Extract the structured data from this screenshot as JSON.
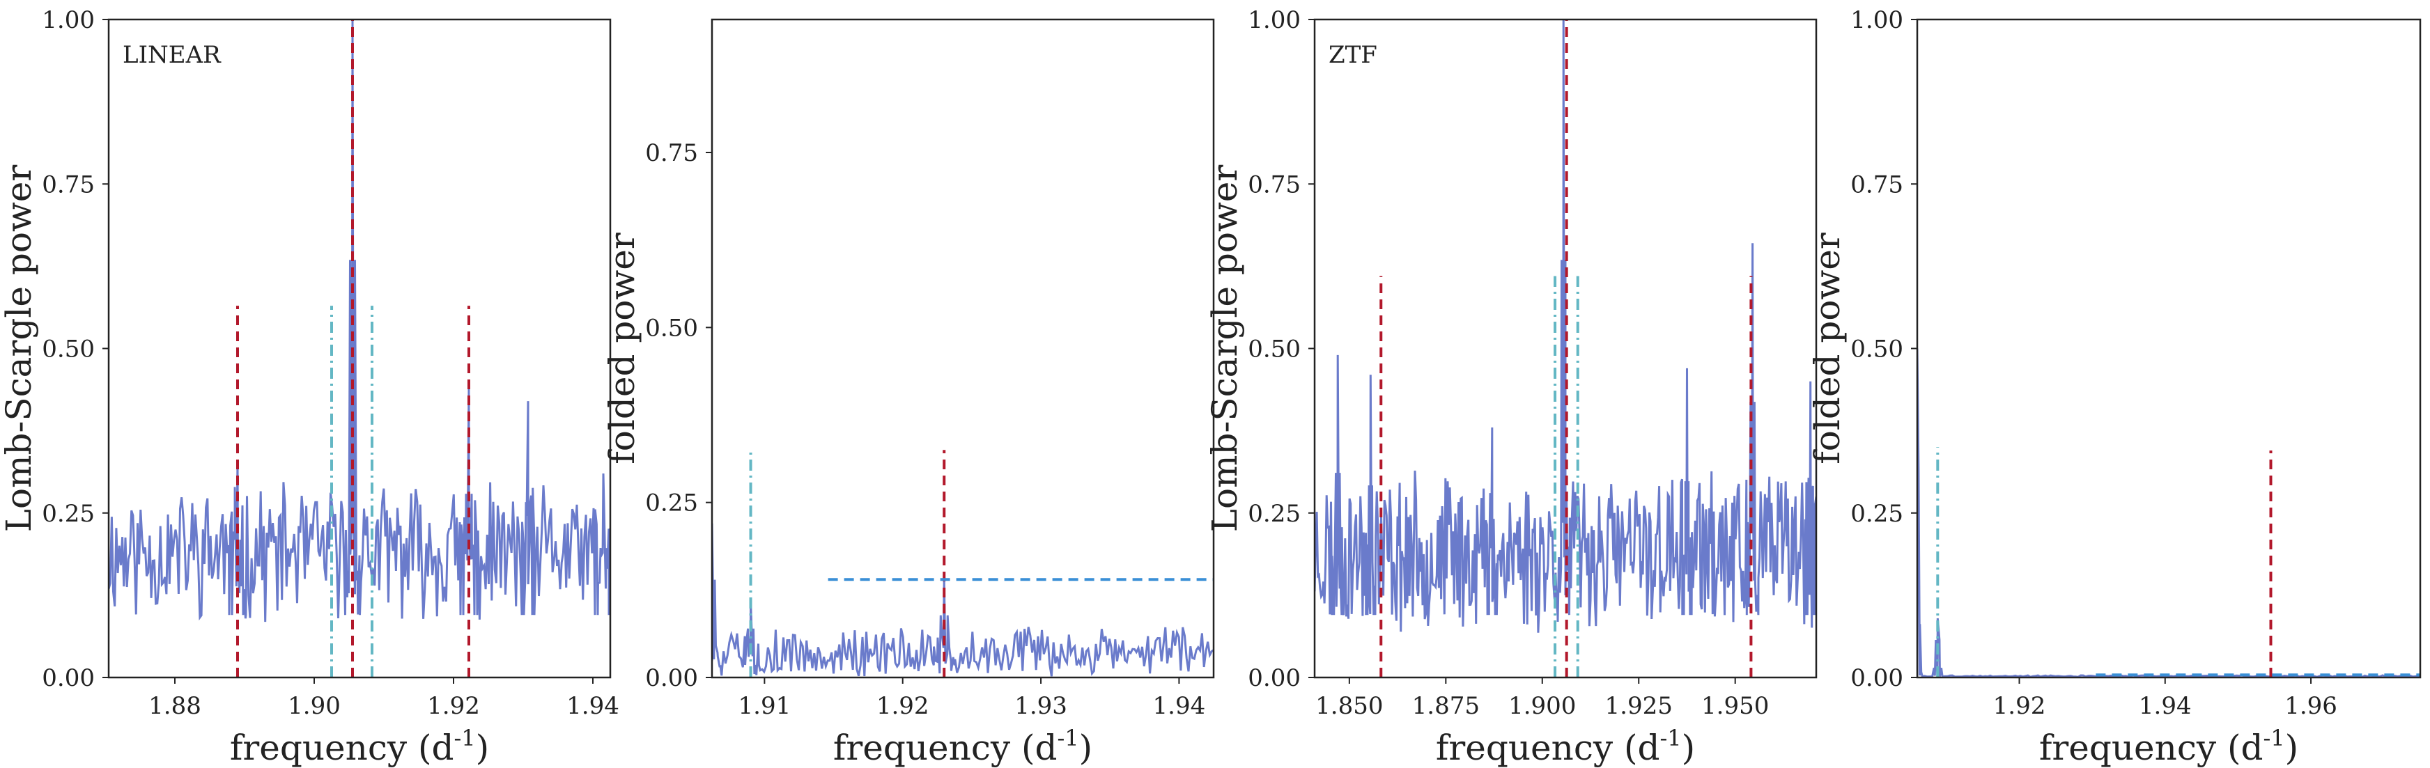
{
  "chart_data": [
    {
      "type": "line",
      "panel": "linear-periodogram",
      "annotation": "LINEAR",
      "xlabel": "frequency (d",
      "xlabel_sup": "-1",
      "xlabel_end": ")",
      "ylabel": "Lomb-Scargle power",
      "xlim": [
        1.8705,
        1.9425
      ],
      "ylim": [
        0,
        1
      ],
      "xticks": [
        1.88,
        1.9,
        1.92,
        1.94
      ],
      "xtick_labels": [
        "1.88",
        "1.90",
        "1.92",
        "1.94"
      ],
      "yticks": [
        0,
        0.25,
        0.5,
        0.75,
        1.0
      ],
      "ytick_labels": [
        "0.00",
        "0.25",
        "0.50",
        "0.75",
        "1.00"
      ],
      "noise": {
        "base": 0.19,
        "amp": 0.085,
        "n": 330,
        "seed": 11
      },
      "peaks": [
        {
          "x": 1.9055,
          "y": 1.0,
          "w": 0.00035
        },
        {
          "x": 1.9222,
          "y": 0.44,
          "w": 0.0004
        },
        {
          "x": 1.889,
          "y": 0.33,
          "w": 0.0004
        },
        {
          "x": 1.9307,
          "y": 0.42,
          "w": 0.0003
        },
        {
          "x": 1.9415,
          "y": 0.31,
          "w": 0.0004
        }
      ],
      "vlines": [
        {
          "x": 1.889,
          "y1": 0.0,
          "y2": 0.565,
          "style": "red-dashed"
        },
        {
          "x": 1.9055,
          "y1": 0.0,
          "y2": 1.0,
          "style": "red-dashed"
        },
        {
          "x": 1.9222,
          "y1": 0.0,
          "y2": 0.565,
          "style": "red-dashed"
        },
        {
          "x": 1.9025,
          "y1": 0.0,
          "y2": 0.565,
          "style": "cyan-dashdot"
        },
        {
          "x": 1.9083,
          "y1": 0.0,
          "y2": 0.565,
          "style": "cyan-dashdot"
        }
      ],
      "hlines": []
    },
    {
      "type": "line",
      "panel": "linear-folded",
      "annotation": "",
      "xlabel": "frequency (d",
      "xlabel_sup": "-1",
      "xlabel_end": ")",
      "ylabel": "folded power",
      "xlim": [
        1.9062,
        1.9425
      ],
      "ylim": [
        0,
        0.94
      ],
      "xticks": [
        1.91,
        1.92,
        1.93,
        1.94
      ],
      "xtick_labels": [
        "1.91",
        "1.92",
        "1.93",
        "1.94"
      ],
      "yticks": [
        0,
        0.25,
        0.5,
        0.75
      ],
      "ytick_labels": [
        "0.00",
        "0.25",
        "0.50",
        "0.75"
      ],
      "noise": {
        "base": 0.035,
        "amp": 0.03,
        "n": 260,
        "seed": 5
      },
      "peaks": [
        {
          "x": 1.9062,
          "y": 0.22,
          "w": 0.0002
        },
        {
          "x": 1.909,
          "y": 0.11,
          "w": 0.0002
        },
        {
          "x": 1.923,
          "y": 0.14,
          "w": 0.00025
        }
      ],
      "vlines": [
        {
          "x": 1.909,
          "y1": 0.0,
          "y2": 0.325,
          "style": "cyan-dashdot"
        },
        {
          "x": 1.923,
          "y1": 0.0,
          "y2": 0.325,
          "style": "red-dashed"
        }
      ],
      "hlines": [
        {
          "y": 0.14,
          "x1": 1.9146,
          "x2": 1.9425,
          "style": "blue-dashed"
        }
      ]
    },
    {
      "type": "line",
      "panel": "ztf-periodogram",
      "annotation": "ZTF",
      "xlabel": "frequency (d",
      "xlabel_sup": "-1",
      "xlabel_end": ")",
      "ylabel": "Lomb-Scargle power",
      "xlim": [
        1.841,
        1.971
      ],
      "ylim": [
        0,
        1
      ],
      "xticks": [
        1.85,
        1.875,
        1.9,
        1.925,
        1.95
      ],
      "xtick_labels": [
        "1.850",
        "1.875",
        "1.900",
        "1.925",
        "1.950"
      ],
      "yticks": [
        0,
        0.25,
        0.5,
        0.75,
        1.0
      ],
      "ytick_labels": [
        "0.00",
        "0.25",
        "0.50",
        "0.75",
        "1.00"
      ],
      "noise": {
        "base": 0.19,
        "amp": 0.1,
        "n": 460,
        "seed": 23
      },
      "peaks": [
        {
          "x": 1.9055,
          "y": 1.0,
          "w": 0.0005
        },
        {
          "x": 1.9545,
          "y": 0.66,
          "w": 0.0005
        },
        {
          "x": 1.847,
          "y": 0.49,
          "w": 0.0005
        },
        {
          "x": 1.8555,
          "y": 0.46,
          "w": 0.0004
        },
        {
          "x": 1.9375,
          "y": 0.47,
          "w": 0.0004
        },
        {
          "x": 1.9695,
          "y": 0.45,
          "w": 0.0004
        },
        {
          "x": 1.887,
          "y": 0.38,
          "w": 0.0004
        }
      ],
      "vlines": [
        {
          "x": 1.8582,
          "y1": 0.0,
          "y2": 0.61,
          "style": "red-dashed"
        },
        {
          "x": 1.9063,
          "y1": 0.0,
          "y2": 1.0,
          "style": "red-dashed"
        },
        {
          "x": 1.9541,
          "y1": 0.0,
          "y2": 0.61,
          "style": "red-dashed"
        },
        {
          "x": 1.9033,
          "y1": 0.0,
          "y2": 0.61,
          "style": "cyan-dashdot"
        },
        {
          "x": 1.9092,
          "y1": 0.0,
          "y2": 0.61,
          "style": "cyan-dashdot"
        }
      ],
      "hlines": []
    },
    {
      "type": "line",
      "panel": "ztf-folded",
      "annotation": "",
      "xlabel": "frequency (d",
      "xlabel_sup": "-1",
      "xlabel_end": ")",
      "ylabel": "folded power",
      "xlim": [
        1.906,
        1.975
      ],
      "ylim": [
        0,
        1
      ],
      "xticks": [
        1.92,
        1.94,
        1.96
      ],
      "xtick_labels": [
        "1.92",
        "1.94",
        "1.96"
      ],
      "yticks": [
        0,
        0.25,
        0.5,
        0.75,
        1.0
      ],
      "ytick_labels": [
        "0.00",
        "0.25",
        "0.50",
        "0.75",
        "1.00"
      ],
      "noise": {
        "base": 0.002,
        "amp": 0.001,
        "n": 200,
        "seed": 3
      },
      "peaks": [
        {
          "x": 1.906,
          "y": 0.5,
          "w": 0.00018
        },
        {
          "x": 1.9088,
          "y": 0.09,
          "w": 0.00025
        }
      ],
      "vlines": [
        {
          "x": 1.9088,
          "y1": 0.0,
          "y2": 0.35,
          "style": "cyan-dashdot"
        },
        {
          "x": 1.9545,
          "y1": 0.0,
          "y2": 0.345,
          "style": "red-dashed"
        }
      ],
      "hlines": [
        {
          "y": 0.004,
          "x1": 1.9305,
          "x2": 1.975,
          "style": "blue-dashed"
        }
      ]
    }
  ],
  "colors": {
    "curve": "#6a7bcb",
    "red": "#b2182b",
    "cyan": "#63b7c4",
    "blue": "#3a8fd6",
    "frame": "#222222"
  }
}
